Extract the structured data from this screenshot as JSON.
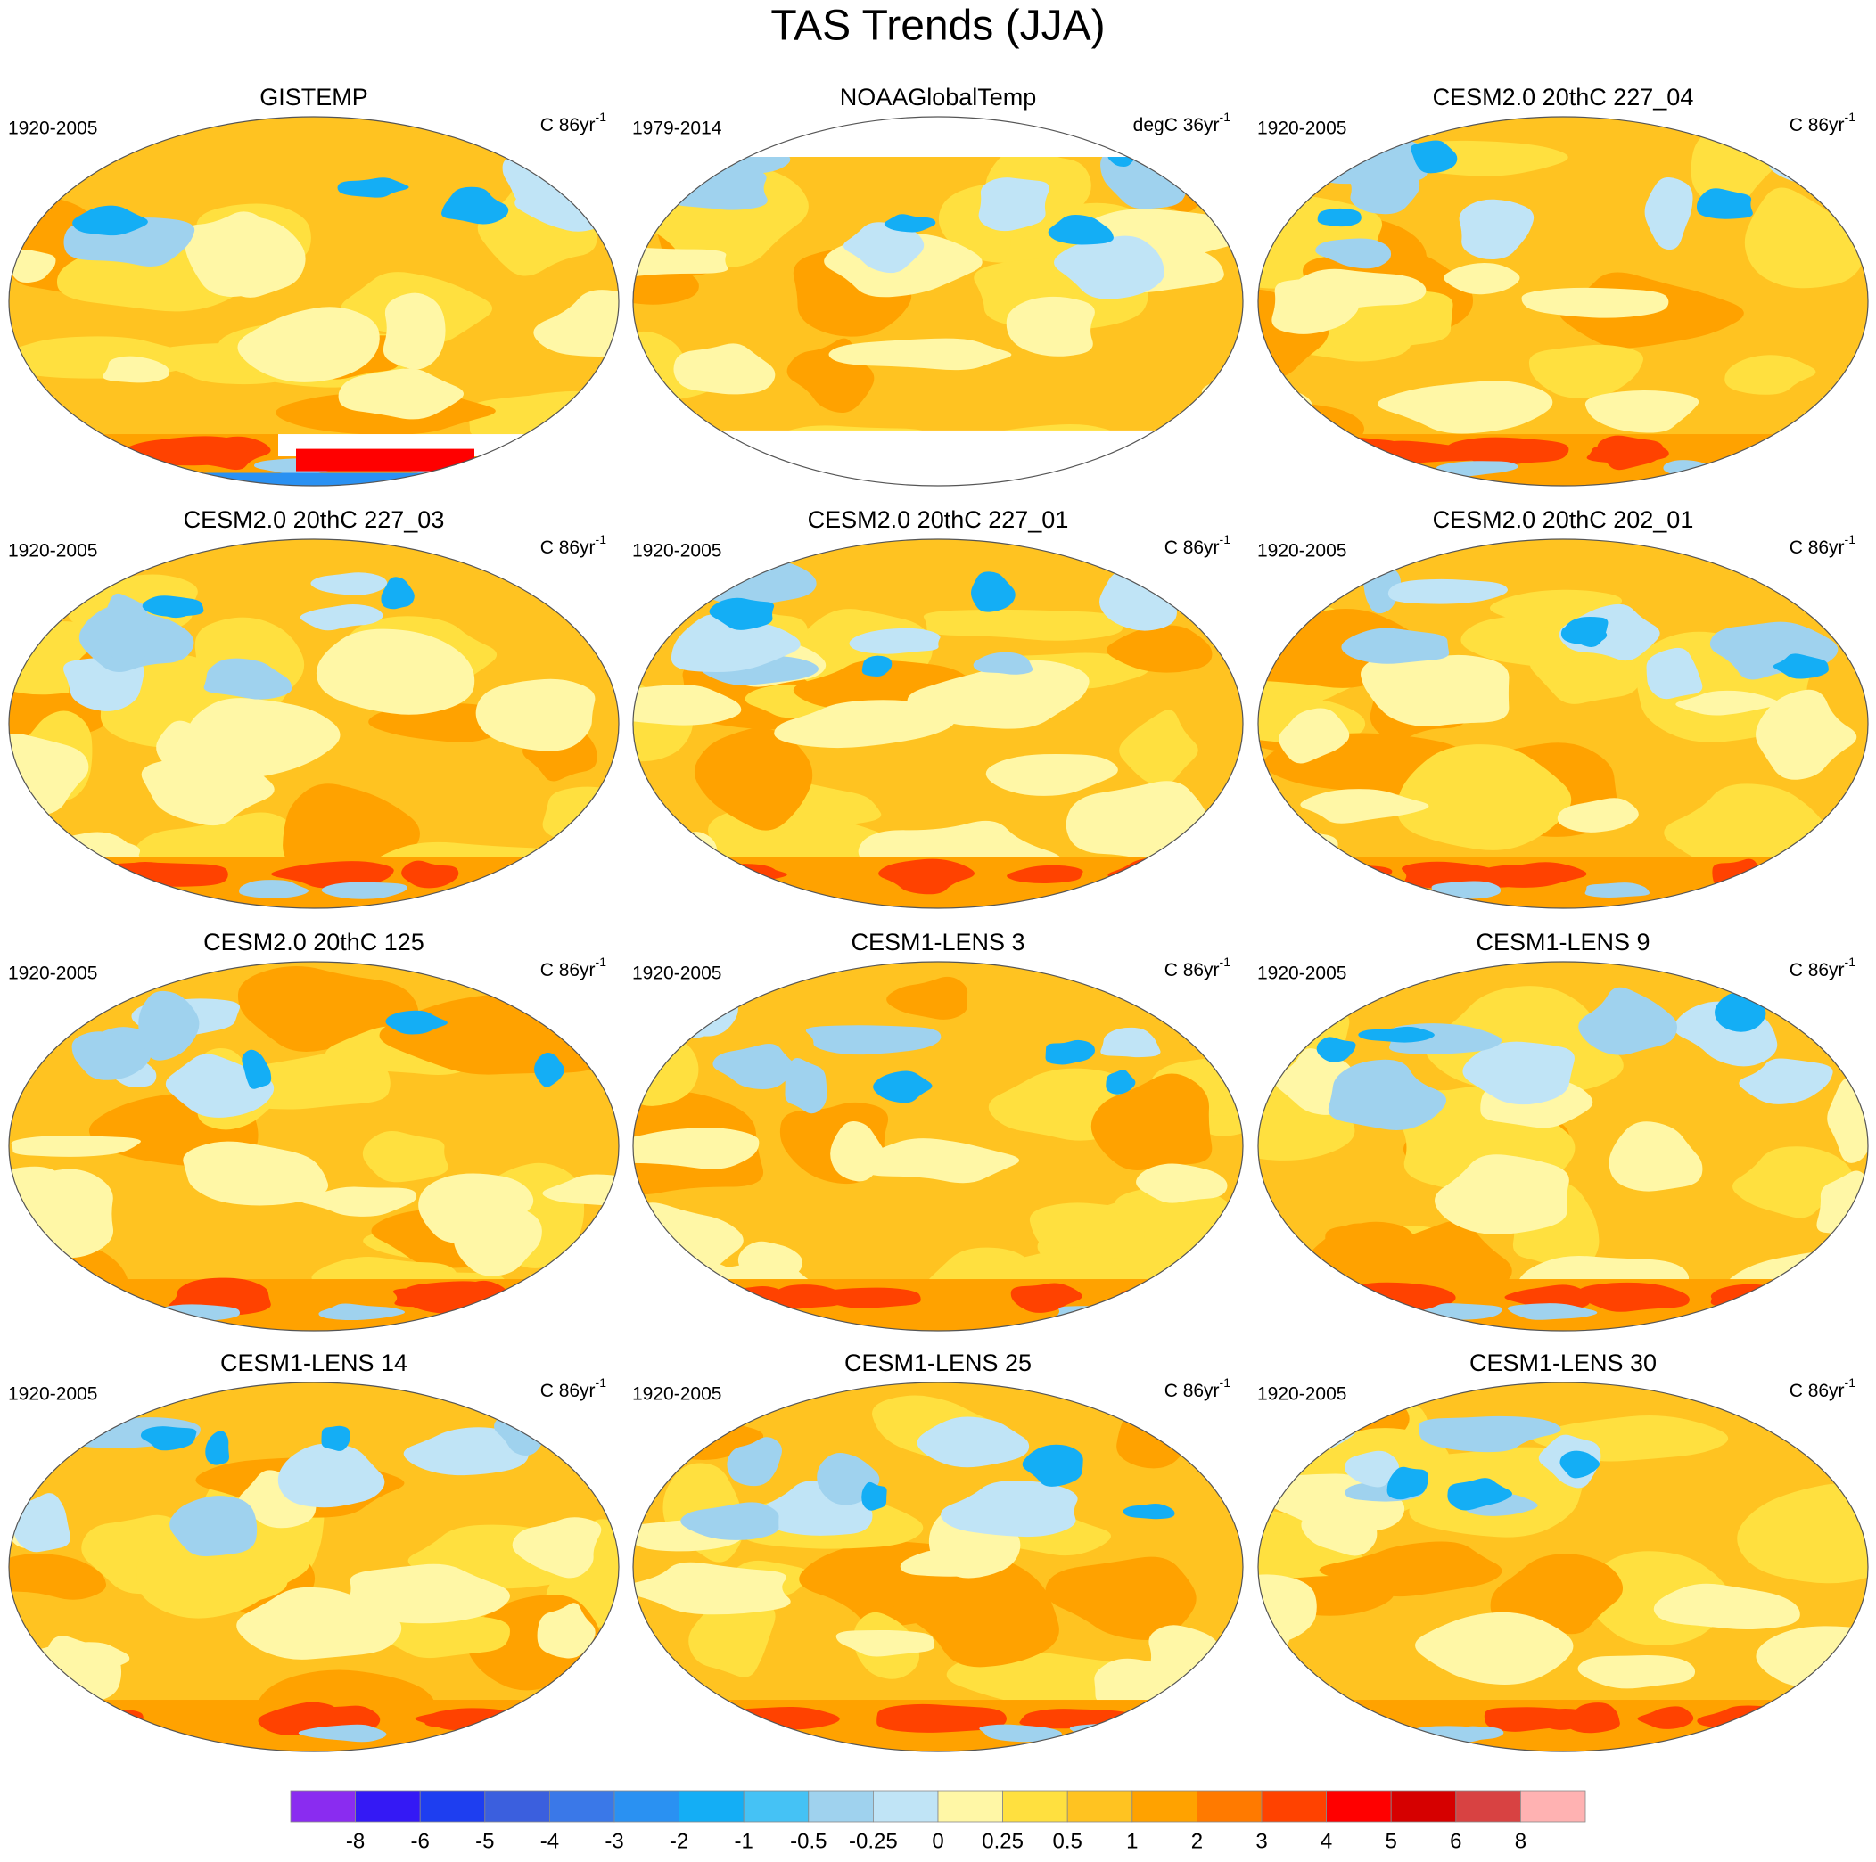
{
  "title": "TAS Trends (JJA)",
  "panels": [
    {
      "title": "GISTEMP",
      "period": "1920-2005",
      "units": {
        "text": "C 86yr",
        "superscript": "-1"
      }
    },
    {
      "title": "NOAAGlobalTemp",
      "period": "1979-2014",
      "units": {
        "text": "degC 36yr",
        "superscript": "-1"
      }
    },
    {
      "title": "CESM2.0 20thC 227_04",
      "period": "1920-2005",
      "units": {
        "text": "C 86yr",
        "superscript": "-1"
      }
    },
    {
      "title": "CESM2.0 20thC 227_03",
      "period": "1920-2005",
      "units": {
        "text": "C 86yr",
        "superscript": "-1"
      }
    },
    {
      "title": "CESM2.0 20thC 227_01",
      "period": "1920-2005",
      "units": {
        "text": "C 86yr",
        "superscript": "-1"
      }
    },
    {
      "title": "CESM2.0 20thC 202_01",
      "period": "1920-2005",
      "units": {
        "text": "C 86yr",
        "superscript": "-1"
      }
    },
    {
      "title": "CESM2.0 20thC 125",
      "period": "1920-2005",
      "units": {
        "text": "C 86yr",
        "superscript": "-1"
      }
    },
    {
      "title": "CESM1-LENS 3",
      "period": "1920-2005",
      "units": {
        "text": "C 86yr",
        "superscript": "-1"
      }
    },
    {
      "title": "CESM1-LENS 9",
      "period": "1920-2005",
      "units": {
        "text": "C 86yr",
        "superscript": "-1"
      }
    },
    {
      "title": "CESM1-LENS 14",
      "period": "1920-2005",
      "units": {
        "text": "C 86yr",
        "superscript": "-1"
      }
    },
    {
      "title": "CESM1-LENS 25",
      "period": "1920-2005",
      "units": {
        "text": "C 86yr",
        "superscript": "-1"
      }
    },
    {
      "title": "CESM1-LENS 30",
      "period": "1920-2005",
      "units": {
        "text": "C 86yr",
        "superscript": "-1"
      }
    }
  ],
  "colorbar": {
    "levels": [
      -8,
      -6,
      -5,
      -4,
      -3,
      -2,
      -1,
      -0.5,
      -0.25,
      0,
      0.25,
      0.5,
      1,
      2,
      3,
      4,
      5,
      6,
      8
    ],
    "colors": [
      "#8a2cf0",
      "#3419f5",
      "#1e3ef0",
      "#3b5fde",
      "#3a78e8",
      "#2a91f2",
      "#14aef5",
      "#45c2f5",
      "#9fd2ee",
      "#c0e4f6",
      "#fff7a6",
      "#ffe03f",
      "#ffc321",
      "#ffa200",
      "#ff7a00",
      "#ff4200",
      "#ff0000",
      "#d60000",
      "#d84242",
      "#ffb2b2"
    ]
  }
}
